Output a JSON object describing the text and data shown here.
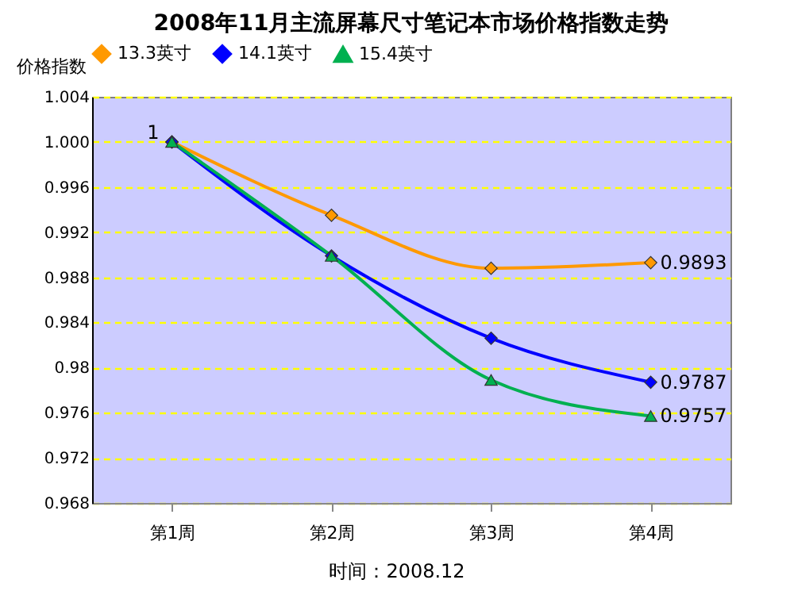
{
  "chart_data": {
    "type": "line",
    "title": "2008年11月主流屏幕尺寸笔记本市场价格指数走势",
    "ylabel": "价格指数",
    "categories": [
      "第1周",
      "第2周",
      "第3周",
      "第4周"
    ],
    "series": [
      {
        "name": "13.3英寸",
        "color": "#ff9900",
        "marker": "diamond",
        "values": [
          1,
          0.9935,
          0.9888,
          0.9893
        ],
        "value_labels": [
          "1",
          null,
          null,
          "0.9893"
        ]
      },
      {
        "name": "14.1英寸",
        "color": "#0000ff",
        "marker": "diamond",
        "values": [
          1,
          0.9899,
          0.9826,
          0.9787
        ],
        "value_labels": [
          null,
          null,
          null,
          "0.9787"
        ]
      },
      {
        "name": "15.4英寸",
        "color": "#00b050",
        "marker": "triangle",
        "values": [
          1,
          0.9899,
          0.9789,
          0.9757
        ],
        "value_labels": [
          null,
          null,
          null,
          "0.9757"
        ]
      }
    ],
    "ylim": [
      0.968,
      1.004
    ],
    "yticks": [
      0.968,
      0.972,
      0.976,
      0.98,
      0.984,
      0.988,
      0.992,
      0.996,
      {
        "value": 1,
        "label": "1.000"
      },
      1.004
    ],
    "grid": "y",
    "legend": "top",
    "line_style": "solid",
    "annotations": [
      "时间：2008.12"
    ]
  }
}
